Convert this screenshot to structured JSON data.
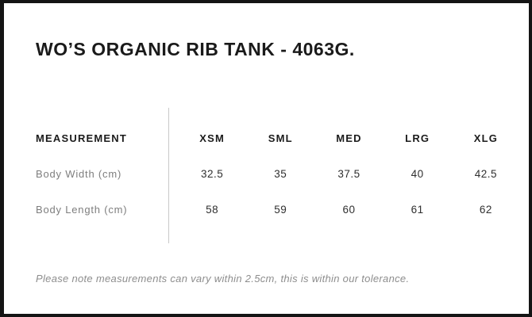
{
  "colors": {
    "background": "#ffffff",
    "border": "#141414",
    "title_text": "#1a1a1a",
    "header_text": "#1b1b1b",
    "value_text": "#2f2f2f",
    "label_text": "#7e7e7e",
    "note_text": "#8d8d8d",
    "divider": "#c9c9c9"
  },
  "header": {
    "title": "WO’S ORGANIC RIB TANK - 4063G."
  },
  "size_chart": {
    "type": "table",
    "columns": [
      "MEASUREMENT",
      "XSM",
      "SML",
      "MED",
      "LRG",
      "XLG"
    ],
    "rows": [
      {
        "label": "Body Width (cm)",
        "values": [
          "32.5",
          "35",
          "37.5",
          "40",
          "42.5"
        ]
      },
      {
        "label": "Body Length (cm)",
        "values": [
          "58",
          "59",
          "60",
          "61",
          "62"
        ]
      }
    ]
  },
  "footer": {
    "note": "Please note measurements can vary within 2.5cm, this is within our tolerance."
  }
}
